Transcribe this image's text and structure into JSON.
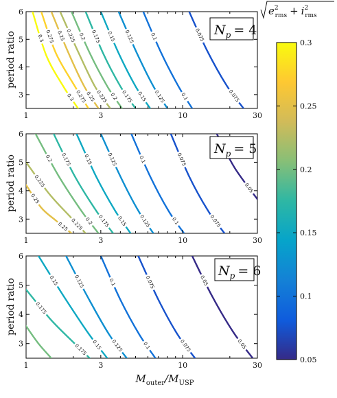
{
  "chart_data": [
    {
      "type": "line",
      "panel_label": "N_p = 4",
      "xscale": "log",
      "xlim": [
        1,
        30
      ],
      "ylim": [
        2.5,
        6
      ],
      "xticks": [
        "1",
        "3",
        "10",
        "30"
      ],
      "yticks": [
        "3",
        "4",
        "5",
        "6"
      ],
      "ylabel": "period ratio",
      "xlabel": "",
      "contour_levels": [
        0.3,
        0.275,
        0.25,
        0.225,
        0.2,
        0.175,
        0.15,
        0.125,
        0.1,
        0.075
      ],
      "series": [
        {
          "level": 0.3,
          "label": "0.3",
          "x": [
            1.1,
            1.35,
            1.75,
            2.15
          ],
          "y": [
            6.0,
            4.4,
            3.25,
            2.5
          ]
        },
        {
          "level": 0.275,
          "label": "0.275",
          "x": [
            1.25,
            1.55,
            2.05,
            2.5
          ],
          "y": [
            6.0,
            4.5,
            3.3,
            2.5
          ]
        },
        {
          "level": 0.25,
          "label": "0.25",
          "x": [
            1.45,
            1.85,
            2.35,
            2.9
          ],
          "y": [
            6.0,
            4.55,
            3.3,
            2.5
          ]
        },
        {
          "level": 0.225,
          "label": "0.225",
          "x": [
            1.65,
            2.15,
            2.75,
            3.45
          ],
          "y": [
            6.0,
            4.55,
            3.3,
            2.5
          ]
        },
        {
          "level": 0.2,
          "label": "0.2",
          "x": [
            1.95,
            2.55,
            3.3,
            4.1
          ],
          "y": [
            6.0,
            4.5,
            3.3,
            2.5
          ]
        },
        {
          "level": 0.175,
          "label": "0.175",
          "x": [
            2.4,
            3.1,
            4.0,
            5.0
          ],
          "y": [
            6.0,
            4.5,
            3.3,
            2.5
          ]
        },
        {
          "level": 0.15,
          "label": "0.15",
          "x": [
            3.0,
            3.9,
            5.0,
            6.2
          ],
          "y": [
            6.0,
            4.5,
            3.3,
            2.5
          ]
        },
        {
          "level": 0.125,
          "label": "0.125",
          "x": [
            3.9,
            5.1,
            6.5,
            8.0
          ],
          "y": [
            6.0,
            4.5,
            3.3,
            2.5
          ]
        },
        {
          "level": 0.1,
          "label": "0.1",
          "x": [
            5.6,
            7.3,
            9.4,
            11.5
          ],
          "y": [
            6.0,
            4.5,
            3.3,
            2.5
          ]
        },
        {
          "level": 0.075,
          "label": "0.075",
          "x": [
            11.0,
            14.3,
            19.0,
            24.5
          ],
          "y": [
            6.0,
            4.6,
            3.35,
            2.5
          ]
        }
      ]
    },
    {
      "type": "line",
      "panel_label": "N_p = 5",
      "xscale": "log",
      "xlim": [
        1,
        30
      ],
      "ylim": [
        2.5,
        6
      ],
      "xticks": [
        "1",
        "3",
        "10",
        "30"
      ],
      "yticks": [
        "3",
        "4",
        "5",
        "6"
      ],
      "ylabel": "period ratio",
      "xlabel": "",
      "contour_levels": [
        0.25,
        0.225,
        0.2,
        0.175,
        0.15,
        0.125,
        0.1,
        0.075,
        0.05
      ],
      "series": [
        {
          "level": 0.25,
          "label": "0.25",
          "x": [
            1.0,
            1.25,
            1.55,
            1.95
          ],
          "y": [
            4.2,
            3.4,
            2.95,
            2.5
          ]
        },
        {
          "level": 0.225,
          "label": "0.225",
          "x": [
            1.0,
            1.4,
            1.9,
            2.4
          ],
          "y": [
            5.0,
            3.9,
            3.1,
            2.5
          ]
        },
        {
          "level": 0.2,
          "label": "0.2",
          "x": [
            1.15,
            1.6,
            2.25,
            2.9
          ],
          "y": [
            6.0,
            4.55,
            3.3,
            2.5
          ]
        },
        {
          "level": 0.175,
          "label": "0.175",
          "x": [
            1.5,
            2.05,
            2.8,
            3.6
          ],
          "y": [
            6.0,
            4.5,
            3.3,
            2.5
          ]
        },
        {
          "level": 0.15,
          "label": "0.15",
          "x": [
            2.1,
            2.8,
            3.7,
            4.65
          ],
          "y": [
            6.0,
            4.5,
            3.3,
            2.5
          ]
        },
        {
          "level": 0.125,
          "label": "0.125",
          "x": [
            3.0,
            4.0,
            5.2,
            6.5
          ],
          "y": [
            6.0,
            4.5,
            3.3,
            2.5
          ]
        },
        {
          "level": 0.1,
          "label": "0.1",
          "x": [
            4.7,
            6.2,
            8.1,
            10.2
          ],
          "y": [
            6.0,
            4.5,
            3.3,
            2.5
          ]
        },
        {
          "level": 0.075,
          "label": "0.075",
          "x": [
            8.4,
            11.0,
            14.5,
            18.5
          ],
          "y": [
            6.0,
            4.5,
            3.3,
            2.5
          ]
        },
        {
          "level": 0.05,
          "label": "0.05",
          "x": [
            16.5,
            21.5,
            30.0
          ],
          "y": [
            6.0,
            4.8,
            3.7
          ]
        }
      ]
    },
    {
      "type": "line",
      "panel_label": "N_p = 6",
      "xscale": "log",
      "xlim": [
        1,
        30
      ],
      "ylim": [
        2.5,
        6
      ],
      "xticks": [
        "1",
        "3",
        "10",
        "30"
      ],
      "yticks": [
        "3",
        "4",
        "5",
        "6"
      ],
      "ylabel": "period ratio",
      "xlabel": "M_outer/M_USP",
      "contour_levels": [
        0.2,
        0.175,
        0.15,
        0.125,
        0.1,
        0.075,
        0.05
      ],
      "series": [
        {
          "level": 0.2,
          "label": "",
          "x": [
            1.0,
            1.2,
            1.45
          ],
          "y": [
            3.6,
            3.0,
            2.5
          ]
        },
        {
          "level": 0.175,
          "label": "0.175",
          "x": [
            1.0,
            1.45,
            2.0,
            2.55
          ],
          "y": [
            4.85,
            3.8,
            3.05,
            2.5
          ]
        },
        {
          "level": 0.15,
          "label": "0.15",
          "x": [
            1.2,
            1.75,
            2.5,
            3.3
          ],
          "y": [
            6.0,
            4.6,
            3.35,
            2.5
          ]
        },
        {
          "level": 0.125,
          "label": "0.125",
          "x": [
            1.8,
            2.5,
            3.4,
            4.4
          ],
          "y": [
            6.0,
            4.55,
            3.3,
            2.5
          ]
        },
        {
          "level": 0.1,
          "label": "0.1",
          "x": [
            3.0,
            4.0,
            5.3,
            6.7
          ],
          "y": [
            6.0,
            4.5,
            3.3,
            2.5
          ]
        },
        {
          "level": 0.075,
          "label": "0.075",
          "x": [
            5.2,
            7.0,
            9.3,
            12.0
          ],
          "y": [
            6.0,
            4.5,
            3.3,
            2.5
          ]
        },
        {
          "level": 0.05,
          "label": "0.05",
          "x": [
            11.5,
            15.5,
            21.0,
            28.0
          ],
          "y": [
            6.0,
            4.6,
            3.4,
            2.5
          ]
        }
      ]
    }
  ],
  "labels": {
    "ylabel": "period ratio",
    "xlabel_main": "M",
    "xlabel_outer": "outer",
    "xlabel_sep": "/M",
    "xlabel_usp": "USP",
    "np_var": "N",
    "np_sub": "p",
    "np_values": [
      "= 4",
      "= 5",
      "= 6"
    ],
    "colorbar_title_e": "e",
    "colorbar_title_i": "i",
    "colorbar_sup": "2",
    "colorbar_sub": "rms",
    "colorbar_plus": "+"
  },
  "colorbar": {
    "min": 0.05,
    "max": 0.3,
    "ticks": [
      "0.3",
      "0.25",
      "0.2",
      "0.15",
      "0.1",
      "0.05"
    ],
    "colormap": "parula",
    "colors": [
      "#352a87",
      "#0f5cdd",
      "#1481d6",
      "#06a4ca",
      "#2eb7a4",
      "#87bf77",
      "#d1bb59",
      "#fec832",
      "#f9fb0e"
    ]
  }
}
